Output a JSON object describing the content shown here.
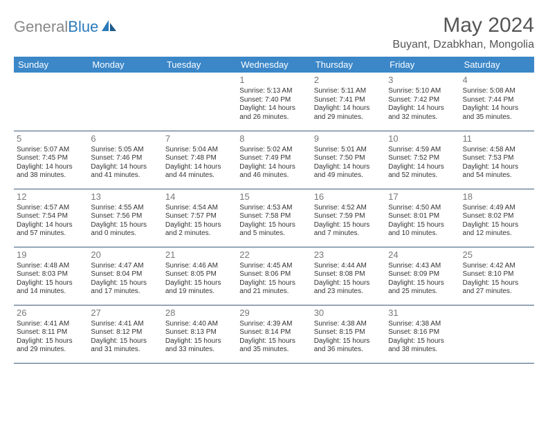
{
  "brand": {
    "text1": "General",
    "text2": "Blue"
  },
  "title": "May 2024",
  "location": "Buyant, Dzabkhan, Mongolia",
  "colors": {
    "header_bg": "#3b87c8",
    "header_text": "#ffffff",
    "border": "#3b5a7a",
    "daynum": "#777777",
    "brand_gray": "#888888",
    "brand_blue": "#2a7ab9"
  },
  "day_headers": [
    "Sunday",
    "Monday",
    "Tuesday",
    "Wednesday",
    "Thursday",
    "Friday",
    "Saturday"
  ],
  "weeks": [
    [
      {
        "n": "",
        "sr": "",
        "ss": "",
        "dl": ""
      },
      {
        "n": "",
        "sr": "",
        "ss": "",
        "dl": ""
      },
      {
        "n": "",
        "sr": "",
        "ss": "",
        "dl": ""
      },
      {
        "n": "1",
        "sr": "5:13 AM",
        "ss": "7:40 PM",
        "dl": "14 hours and 26 minutes."
      },
      {
        "n": "2",
        "sr": "5:11 AM",
        "ss": "7:41 PM",
        "dl": "14 hours and 29 minutes."
      },
      {
        "n": "3",
        "sr": "5:10 AM",
        "ss": "7:42 PM",
        "dl": "14 hours and 32 minutes."
      },
      {
        "n": "4",
        "sr": "5:08 AM",
        "ss": "7:44 PM",
        "dl": "14 hours and 35 minutes."
      }
    ],
    [
      {
        "n": "5",
        "sr": "5:07 AM",
        "ss": "7:45 PM",
        "dl": "14 hours and 38 minutes."
      },
      {
        "n": "6",
        "sr": "5:05 AM",
        "ss": "7:46 PM",
        "dl": "14 hours and 41 minutes."
      },
      {
        "n": "7",
        "sr": "5:04 AM",
        "ss": "7:48 PM",
        "dl": "14 hours and 44 minutes."
      },
      {
        "n": "8",
        "sr": "5:02 AM",
        "ss": "7:49 PM",
        "dl": "14 hours and 46 minutes."
      },
      {
        "n": "9",
        "sr": "5:01 AM",
        "ss": "7:50 PM",
        "dl": "14 hours and 49 minutes."
      },
      {
        "n": "10",
        "sr": "4:59 AM",
        "ss": "7:52 PM",
        "dl": "14 hours and 52 minutes."
      },
      {
        "n": "11",
        "sr": "4:58 AM",
        "ss": "7:53 PM",
        "dl": "14 hours and 54 minutes."
      }
    ],
    [
      {
        "n": "12",
        "sr": "4:57 AM",
        "ss": "7:54 PM",
        "dl": "14 hours and 57 minutes."
      },
      {
        "n": "13",
        "sr": "4:55 AM",
        "ss": "7:56 PM",
        "dl": "15 hours and 0 minutes."
      },
      {
        "n": "14",
        "sr": "4:54 AM",
        "ss": "7:57 PM",
        "dl": "15 hours and 2 minutes."
      },
      {
        "n": "15",
        "sr": "4:53 AM",
        "ss": "7:58 PM",
        "dl": "15 hours and 5 minutes."
      },
      {
        "n": "16",
        "sr": "4:52 AM",
        "ss": "7:59 PM",
        "dl": "15 hours and 7 minutes."
      },
      {
        "n": "17",
        "sr": "4:50 AM",
        "ss": "8:01 PM",
        "dl": "15 hours and 10 minutes."
      },
      {
        "n": "18",
        "sr": "4:49 AM",
        "ss": "8:02 PM",
        "dl": "15 hours and 12 minutes."
      }
    ],
    [
      {
        "n": "19",
        "sr": "4:48 AM",
        "ss": "8:03 PM",
        "dl": "15 hours and 14 minutes."
      },
      {
        "n": "20",
        "sr": "4:47 AM",
        "ss": "8:04 PM",
        "dl": "15 hours and 17 minutes."
      },
      {
        "n": "21",
        "sr": "4:46 AM",
        "ss": "8:05 PM",
        "dl": "15 hours and 19 minutes."
      },
      {
        "n": "22",
        "sr": "4:45 AM",
        "ss": "8:06 PM",
        "dl": "15 hours and 21 minutes."
      },
      {
        "n": "23",
        "sr": "4:44 AM",
        "ss": "8:08 PM",
        "dl": "15 hours and 23 minutes."
      },
      {
        "n": "24",
        "sr": "4:43 AM",
        "ss": "8:09 PM",
        "dl": "15 hours and 25 minutes."
      },
      {
        "n": "25",
        "sr": "4:42 AM",
        "ss": "8:10 PM",
        "dl": "15 hours and 27 minutes."
      }
    ],
    [
      {
        "n": "26",
        "sr": "4:41 AM",
        "ss": "8:11 PM",
        "dl": "15 hours and 29 minutes."
      },
      {
        "n": "27",
        "sr": "4:41 AM",
        "ss": "8:12 PM",
        "dl": "15 hours and 31 minutes."
      },
      {
        "n": "28",
        "sr": "4:40 AM",
        "ss": "8:13 PM",
        "dl": "15 hours and 33 minutes."
      },
      {
        "n": "29",
        "sr": "4:39 AM",
        "ss": "8:14 PM",
        "dl": "15 hours and 35 minutes."
      },
      {
        "n": "30",
        "sr": "4:38 AM",
        "ss": "8:15 PM",
        "dl": "15 hours and 36 minutes."
      },
      {
        "n": "31",
        "sr": "4:38 AM",
        "ss": "8:16 PM",
        "dl": "15 hours and 38 minutes."
      },
      {
        "n": "",
        "sr": "",
        "ss": "",
        "dl": ""
      }
    ]
  ],
  "labels": {
    "sunrise": "Sunrise:",
    "sunset": "Sunset:",
    "daylight": "Daylight:"
  }
}
